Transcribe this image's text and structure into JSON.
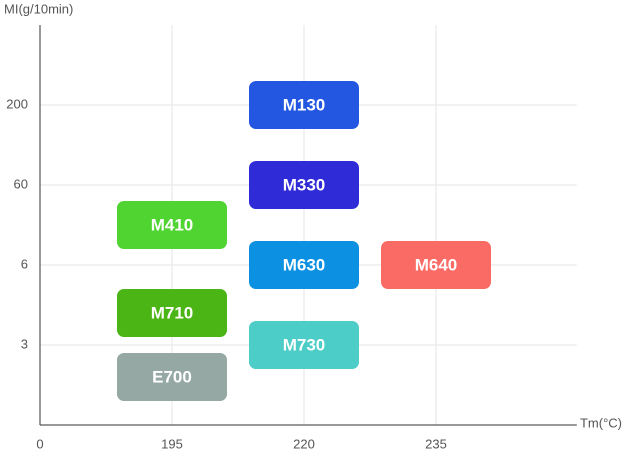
{
  "chart_data": {
    "type": "tile",
    "x_label": "Tm(°C)",
    "y_label": "MI(g/10min)",
    "xlim": [
      0,
      251
    ],
    "xticks": [
      0,
      195,
      220,
      235
    ],
    "ylim": [
      0,
      340
    ],
    "yticks": [
      3,
      6,
      60,
      200
    ],
    "grid": true,
    "items": [
      {
        "name": "M130",
        "x": 220,
        "y": 200,
        "color": "#2457e1"
      },
      {
        "name": "M330",
        "x": 220,
        "y": 60,
        "color": "#2f2bd7"
      },
      {
        "name": "M410",
        "x": 195,
        "y": 33,
        "color": "#50d432"
      },
      {
        "name": "M630",
        "x": 220,
        "y": 6,
        "color": "#0c90e1"
      },
      {
        "name": "M640",
        "x": 235,
        "y": 6,
        "color": "#fb6b66"
      },
      {
        "name": "M710",
        "x": 195,
        "y": 4.2,
        "color": "#4bb515"
      },
      {
        "name": "M730",
        "x": 220,
        "y": 3,
        "color": "#4ccdc7"
      },
      {
        "name": "E700",
        "x": 195,
        "y": 1.8,
        "color": "#95a8a4"
      }
    ]
  }
}
